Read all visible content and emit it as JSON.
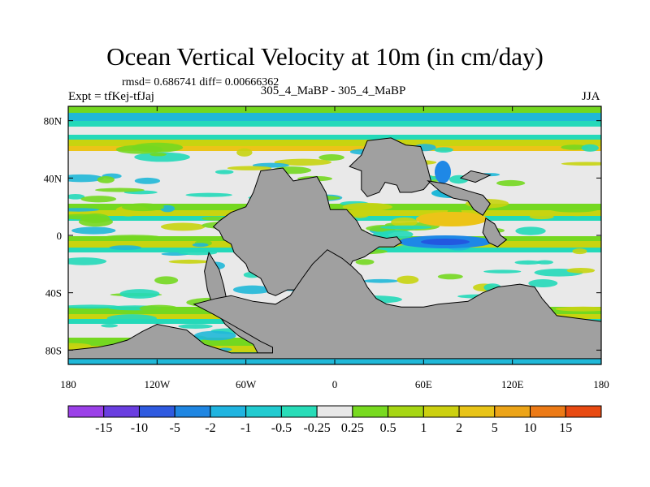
{
  "title": "Ocean Vertical Velocity at 10m (in cm/day)",
  "stats": "rmsd= 0.686741 diff= 0.00666362",
  "expt": "Expt = tfKej-tfJaj",
  "center_label": "305_4_MaBP - 305_4_MaBP",
  "season": "JJA",
  "map": {
    "lon_range": [
      -180,
      180
    ],
    "lat_range": [
      -90,
      90
    ],
    "land_color": "#a0a0a0",
    "field_colors": {
      "neutral": "#e9e9e9",
      "weak_neg": "#24d9b9",
      "mid_neg": "#20b8d8",
      "neg": "#1e88e6",
      "strong_neg": "#2258e0",
      "weak_pos": "#74d820",
      "pos": "#c8d410",
      "strong_pos": "#ecc418"
    },
    "x_ticks": [
      {
        "label": "180",
        "lon": -180
      },
      {
        "label": "120W",
        "lon": -120
      },
      {
        "label": "60W",
        "lon": -60
      },
      {
        "label": "0",
        "lon": 0
      },
      {
        "label": "60E",
        "lon": 60
      },
      {
        "label": "120E",
        "lon": 120
      },
      {
        "label": "180",
        "lon": 180
      }
    ],
    "y_ticks": [
      {
        "label": "80N",
        "lat": 80
      },
      {
        "label": "40N",
        "lat": 40
      },
      {
        "label": "0",
        "lat": 0
      },
      {
        "label": "40S",
        "lat": -40
      },
      {
        "label": "80S",
        "lat": -80
      }
    ]
  },
  "colorbar": {
    "colors": [
      "#9b40e8",
      "#6a3ee0",
      "#2f5ae0",
      "#1f86e2",
      "#20b4e0",
      "#22cbd0",
      "#28dcb8",
      "#e8e8e8",
      "#78da20",
      "#a6d614",
      "#ccd010",
      "#e8c418",
      "#eca418",
      "#ec7a16",
      "#e84a12"
    ],
    "labels": [
      "-15",
      "-10",
      "-5",
      "-2",
      "-1",
      "-0.5",
      "-0.25",
      "0.25",
      "0.5",
      "1",
      "2",
      "5",
      "10",
      "15"
    ]
  }
}
